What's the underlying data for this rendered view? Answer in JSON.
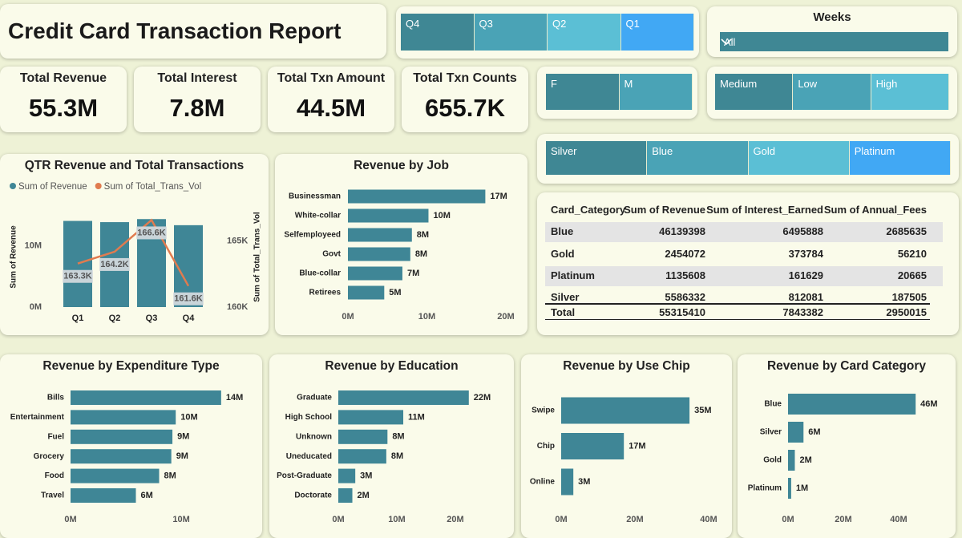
{
  "header": {
    "title": "Credit Card Transaction Report"
  },
  "slicers": {
    "quarter": [
      "Q4",
      "Q3",
      "Q2",
      "Q1"
    ],
    "weeks": {
      "title": "Weeks",
      "selected": "All"
    },
    "gender": [
      "F",
      "M"
    ],
    "levels": [
      "Medium",
      "Low",
      "High"
    ],
    "card_category": [
      "Silver",
      "Blue",
      "Gold",
      "Platinum"
    ]
  },
  "kpis": [
    {
      "label": "Total Revenue",
      "value": "55.3M"
    },
    {
      "label": "Total Interest",
      "value": "7.8M"
    },
    {
      "label": "Total Txn Amount",
      "value": "44.5M"
    },
    {
      "label": "Total Txn Counts",
      "value": "655.7K"
    }
  ],
  "table": {
    "columns": [
      "Card_Category",
      "Sum of Revenue",
      "Sum of Interest_Earned",
      "Sum of Annual_Fees"
    ],
    "rows": [
      [
        "Blue",
        46139398,
        6495888,
        2685635
      ],
      [
        "Gold",
        2454072,
        373784,
        56210
      ],
      [
        "Platinum",
        1135608,
        161629,
        20665
      ],
      [
        "Silver",
        5586332,
        812081,
        187505
      ]
    ],
    "total": [
      "Total",
      55315410,
      7843382,
      2950015
    ]
  },
  "chart_data": [
    {
      "type": "combo",
      "title": "QTR Revenue and Total Transactions",
      "categories": [
        "Q1",
        "Q2",
        "Q3",
        "Q4"
      ],
      "series": [
        {
          "name": "Sum of Revenue",
          "type": "bar",
          "color": "#3f8696",
          "values": [
            14100000,
            13900000,
            14400000,
            13400000
          ]
        },
        {
          "name": "Sum of Total_Trans_Vol",
          "type": "line",
          "axis": "y2",
          "color": "#e07b4f",
          "values": [
            163300,
            164200,
            166600,
            161600
          ],
          "value_labels": [
            "163.3K",
            "164.2K",
            "166.6K",
            "161.6K"
          ]
        }
      ],
      "ylabel": "Sum of Revenue",
      "y2label": "Sum of Total_Trans_Vol",
      "ylim": [
        0,
        16400000
      ],
      "yticks": [
        {
          "value": 0,
          "label": "0M"
        },
        {
          "value": 10000000,
          "label": "10M"
        }
      ],
      "y2lim": [
        160000,
        167600
      ],
      "y2ticks": [
        {
          "value": 160000,
          "label": "160K"
        },
        {
          "value": 165000,
          "label": "165K"
        }
      ]
    },
    {
      "type": "hbar",
      "title": "Revenue by Job",
      "color": "#3f8696",
      "categories": [
        "Businessman",
        "White-collar",
        "Selfemployeed",
        "Govt",
        "Blue-collar",
        "Retirees"
      ],
      "values": [
        17400000,
        10200000,
        8100000,
        7900000,
        6900000,
        4600000
      ],
      "value_labels": [
        "17M",
        "10M",
        "8M",
        "8M",
        "7M",
        "5M"
      ],
      "xlim": [
        0,
        20000000
      ],
      "xticks": [
        {
          "value": 0,
          "label": "0M"
        },
        {
          "value": 10000000,
          "label": "10M"
        },
        {
          "value": 20000000,
          "label": "20M"
        }
      ]
    },
    {
      "type": "hbar",
      "title": "Revenue by Expenditure Type",
      "color": "#3f8696",
      "categories": [
        "Bills",
        "Entertainment",
        "Fuel",
        "Grocery",
        "Food",
        "Travel"
      ],
      "values": [
        13600000,
        9500000,
        9200000,
        9100000,
        8000000,
        5900000
      ],
      "value_labels": [
        "14M",
        "10M",
        "9M",
        "9M",
        "8M",
        "6M"
      ],
      "xlim": [
        0,
        16000000
      ],
      "xticks": [
        {
          "value": 0,
          "label": "0M"
        },
        {
          "value": 10000000,
          "label": "10M"
        }
      ]
    },
    {
      "type": "hbar",
      "title": "Revenue by Education",
      "color": "#3f8696",
      "categories": [
        "Graduate",
        "High School",
        "Unknown",
        "Uneducated",
        "Post-Graduate",
        "Doctorate"
      ],
      "values": [
        22300000,
        11100000,
        8400000,
        8200000,
        2900000,
        2400000
      ],
      "value_labels": [
        "22M",
        "11M",
        "8M",
        "8M",
        "3M",
        "2M"
      ],
      "xlim": [
        0,
        25000000
      ],
      "xticks": [
        {
          "value": 0,
          "label": "0M"
        },
        {
          "value": 10000000,
          "label": "10M"
        },
        {
          "value": 20000000,
          "label": "20M"
        }
      ]
    },
    {
      "type": "hbar",
      "title": "Revenue by Use Chip",
      "color": "#3f8696",
      "categories": [
        "Swipe",
        "Chip",
        "Online"
      ],
      "values": [
        34800000,
        17000000,
        3300000
      ],
      "value_labels": [
        "35M",
        "17M",
        "3M"
      ],
      "xlim": [
        0,
        40000000
      ],
      "xticks": [
        {
          "value": 0,
          "label": "0M"
        },
        {
          "value": 20000000,
          "label": "20M"
        },
        {
          "value": 40000000,
          "label": "40M"
        }
      ]
    },
    {
      "type": "hbar",
      "title": "Revenue by Card Category",
      "color": "#3f8696",
      "categories": [
        "Blue",
        "Silver",
        "Gold",
        "Platinum"
      ],
      "values": [
        46139398,
        5586332,
        2454072,
        1135608
      ],
      "value_labels": [
        "46M",
        "6M",
        "2M",
        "1M"
      ],
      "xlim": [
        0,
        50000000
      ],
      "xticks": [
        {
          "value": 0,
          "label": "0M"
        },
        {
          "value": 20000000,
          "label": "20M"
        },
        {
          "value": 40000000,
          "label": "40M"
        }
      ]
    }
  ]
}
